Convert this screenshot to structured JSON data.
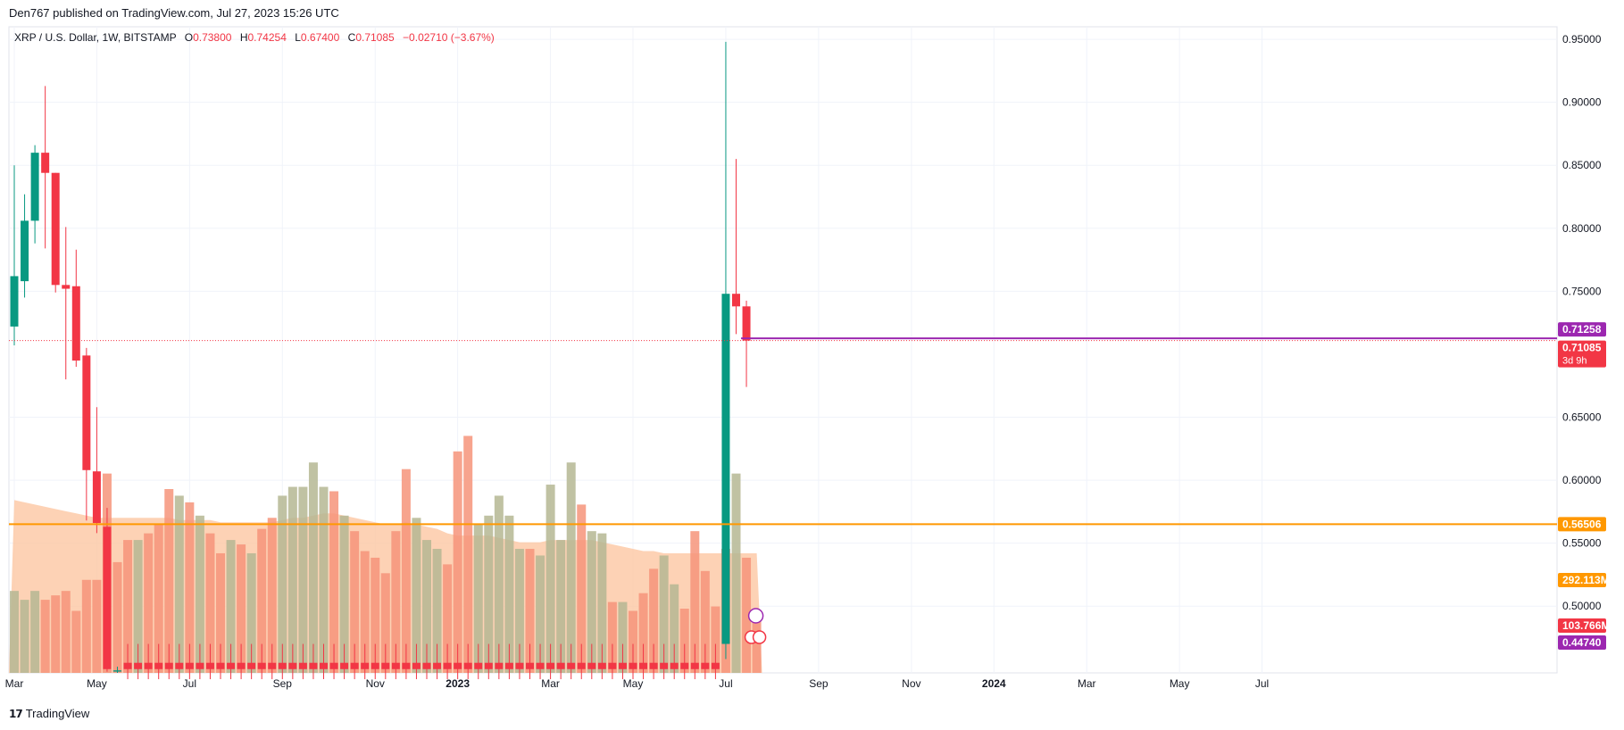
{
  "header": {
    "publisher": "Den767 published on TradingView.com, Jul 27, 2023 15:26 UTC"
  },
  "legend": {
    "symbol": "XRP / U.S. Dollar, 1W, BITSTAMP",
    "o_label": "O",
    "o": "0.73800",
    "h_label": "H",
    "h": "0.74254",
    "l_label": "L",
    "l": "0.67400",
    "c_label": "C",
    "c": "0.71085",
    "change": "−0.02710 (−3.67%)"
  },
  "footer": {
    "brand": "TradingView",
    "logo_icon": "tradingview-logo-icon"
  },
  "colors": {
    "up": "#089981",
    "down": "#f23645",
    "vol_up": "#b5b793",
    "vol_down": "#f6947a",
    "ma_area": "#fcc7a3",
    "support": "#ff9800",
    "resistance": "#9c27b0",
    "axis_text": "#131722",
    "grid": "#f0f3fa"
  },
  "chart_data": {
    "type": "candlestick",
    "symbol": "XRP / U.S. Dollar",
    "interval": "1W",
    "exchange": "BITSTAMP",
    "y_ticks": [
      "0.95000",
      "0.90000",
      "0.85000",
      "0.80000",
      "0.75000",
      "0.65000",
      "0.60000",
      "0.55000",
      "0.50000"
    ],
    "x_ticks": [
      "Mar",
      "May",
      "Jul",
      "Sep",
      "Nov",
      "2023",
      "Mar",
      "May",
      "Jul",
      "Sep",
      "Nov",
      "2024",
      "Mar",
      "May",
      "Jul"
    ],
    "x_tick_weeks": [
      0,
      8,
      17,
      26,
      35,
      43,
      52,
      60,
      69,
      78,
      87,
      95,
      104,
      113,
      121
    ],
    "ylim": [
      0.447,
      0.96
    ],
    "horizontal_lines": [
      {
        "value": 0.56506,
        "label": "0.56506",
        "style": "support"
      },
      {
        "value": 0.71258,
        "label": "0.71258",
        "style": "resistance"
      }
    ],
    "price_labels": [
      {
        "value": 0.71085,
        "label": "0.71085",
        "sub": "3d 9h",
        "style": "last"
      }
    ],
    "volume_labels": [
      {
        "label": "292.113M",
        "style": "support"
      },
      {
        "label": "103.766M",
        "style": "last"
      },
      {
        "label": "0.44740",
        "style": "resistance"
      }
    ],
    "candles": [
      {
        "o": 0.722,
        "h": 0.85,
        "l": 0.707,
        "c": 0.762
      },
      {
        "o": 0.758,
        "h": 0.827,
        "l": 0.745,
        "c": 0.806
      },
      {
        "o": 0.806,
        "h": 0.866,
        "l": 0.788,
        "c": 0.86
      },
      {
        "o": 0.86,
        "h": 0.913,
        "l": 0.784,
        "c": 0.844
      },
      {
        "o": 0.844,
        "h": 0.844,
        "l": 0.749,
        "c": 0.755
      },
      {
        "o": 0.755,
        "h": 0.801,
        "l": 0.68,
        "c": 0.752
      },
      {
        "o": 0.754,
        "h": 0.783,
        "l": 0.69,
        "c": 0.695
      },
      {
        "o": 0.699,
        "h": 0.705,
        "l": 0.568,
        "c": 0.608
      },
      {
        "o": 0.607,
        "h": 0.658,
        "l": 0.558,
        "c": 0.566
      },
      {
        "o": 0.563,
        "h": 0.578,
        "l": 0.448,
        "c": 0.45
      },
      {
        "o": 0.455,
        "h": 0.47,
        "l": 0.442,
        "c": 0.45
      },
      {
        "o": 0.455,
        "h": 0.47,
        "l": 0.442,
        "c": 0.45
      },
      {
        "o": 0.455,
        "h": 0.47,
        "l": 0.442,
        "c": 0.45
      },
      {
        "o": 0.455,
        "h": 0.47,
        "l": 0.442,
        "c": 0.45
      },
      {
        "o": 0.455,
        "h": 0.47,
        "l": 0.442,
        "c": 0.45
      },
      {
        "o": 0.455,
        "h": 0.47,
        "l": 0.442,
        "c": 0.45
      },
      {
        "o": 0.455,
        "h": 0.47,
        "l": 0.442,
        "c": 0.45
      },
      {
        "o": 0.455,
        "h": 0.47,
        "l": 0.442,
        "c": 0.45
      },
      {
        "o": 0.455,
        "h": 0.47,
        "l": 0.442,
        "c": 0.45
      },
      {
        "o": 0.455,
        "h": 0.47,
        "l": 0.442,
        "c": 0.45
      },
      {
        "o": 0.455,
        "h": 0.47,
        "l": 0.442,
        "c": 0.45
      },
      {
        "o": 0.455,
        "h": 0.47,
        "l": 0.442,
        "c": 0.45
      },
      {
        "o": 0.455,
        "h": 0.47,
        "l": 0.442,
        "c": 0.45
      },
      {
        "o": 0.455,
        "h": 0.47,
        "l": 0.442,
        "c": 0.45
      },
      {
        "o": 0.455,
        "h": 0.47,
        "l": 0.442,
        "c": 0.45
      },
      {
        "o": 0.455,
        "h": 0.47,
        "l": 0.442,
        "c": 0.45
      },
      {
        "o": 0.455,
        "h": 0.47,
        "l": 0.442,
        "c": 0.45
      },
      {
        "o": 0.455,
        "h": 0.47,
        "l": 0.442,
        "c": 0.45
      },
      {
        "o": 0.455,
        "h": 0.47,
        "l": 0.442,
        "c": 0.45
      },
      {
        "o": 0.455,
        "h": 0.47,
        "l": 0.442,
        "c": 0.45
      },
      {
        "o": 0.455,
        "h": 0.47,
        "l": 0.442,
        "c": 0.45
      },
      {
        "o": 0.455,
        "h": 0.47,
        "l": 0.442,
        "c": 0.45
      },
      {
        "o": 0.455,
        "h": 0.47,
        "l": 0.442,
        "c": 0.45
      },
      {
        "o": 0.455,
        "h": 0.47,
        "l": 0.442,
        "c": 0.45
      },
      {
        "o": 0.455,
        "h": 0.47,
        "l": 0.442,
        "c": 0.45
      },
      {
        "o": 0.455,
        "h": 0.47,
        "l": 0.442,
        "c": 0.45
      },
      {
        "o": 0.455,
        "h": 0.47,
        "l": 0.442,
        "c": 0.45
      },
      {
        "o": 0.455,
        "h": 0.47,
        "l": 0.442,
        "c": 0.45
      },
      {
        "o": 0.455,
        "h": 0.47,
        "l": 0.442,
        "c": 0.45
      },
      {
        "o": 0.455,
        "h": 0.47,
        "l": 0.442,
        "c": 0.45
      },
      {
        "o": 0.455,
        "h": 0.47,
        "l": 0.442,
        "c": 0.45
      },
      {
        "o": 0.455,
        "h": 0.47,
        "l": 0.442,
        "c": 0.45
      },
      {
        "o": 0.455,
        "h": 0.47,
        "l": 0.442,
        "c": 0.45
      },
      {
        "o": 0.455,
        "h": 0.47,
        "l": 0.442,
        "c": 0.45
      },
      {
        "o": 0.455,
        "h": 0.47,
        "l": 0.442,
        "c": 0.45
      },
      {
        "o": 0.455,
        "h": 0.47,
        "l": 0.442,
        "c": 0.45
      },
      {
        "o": 0.455,
        "h": 0.47,
        "l": 0.442,
        "c": 0.45
      },
      {
        "o": 0.455,
        "h": 0.47,
        "l": 0.442,
        "c": 0.45
      },
      {
        "o": 0.455,
        "h": 0.47,
        "l": 0.442,
        "c": 0.45
      },
      {
        "o": 0.455,
        "h": 0.47,
        "l": 0.442,
        "c": 0.45
      },
      {
        "o": 0.455,
        "h": 0.47,
        "l": 0.442,
        "c": 0.45
      },
      {
        "o": 0.455,
        "h": 0.47,
        "l": 0.442,
        "c": 0.45
      },
      {
        "o": 0.455,
        "h": 0.47,
        "l": 0.442,
        "c": 0.45
      },
      {
        "o": 0.455,
        "h": 0.47,
        "l": 0.442,
        "c": 0.45
      },
      {
        "o": 0.455,
        "h": 0.47,
        "l": 0.442,
        "c": 0.45
      },
      {
        "o": 0.455,
        "h": 0.47,
        "l": 0.442,
        "c": 0.45
      },
      {
        "o": 0.455,
        "h": 0.47,
        "l": 0.442,
        "c": 0.45
      },
      {
        "o": 0.455,
        "h": 0.47,
        "l": 0.442,
        "c": 0.45
      },
      {
        "o": 0.455,
        "h": 0.47,
        "l": 0.442,
        "c": 0.45
      },
      {
        "o": 0.455,
        "h": 0.47,
        "l": 0.442,
        "c": 0.45
      },
      {
        "o": 0.455,
        "h": 0.47,
        "l": 0.442,
        "c": 0.45
      },
      {
        "o": 0.455,
        "h": 0.47,
        "l": 0.442,
        "c": 0.45
      },
      {
        "o": 0.455,
        "h": 0.47,
        "l": 0.442,
        "c": 0.45
      },
      {
        "o": 0.455,
        "h": 0.47,
        "l": 0.442,
        "c": 0.45
      },
      {
        "o": 0.455,
        "h": 0.47,
        "l": 0.442,
        "c": 0.45
      },
      {
        "o": 0.455,
        "h": 0.47,
        "l": 0.442,
        "c": 0.45
      },
      {
        "o": 0.455,
        "h": 0.47,
        "l": 0.442,
        "c": 0.45
      },
      {
        "o": 0.455,
        "h": 0.47,
        "l": 0.442,
        "c": 0.45
      },
      {
        "o": 0.455,
        "h": 0.47,
        "l": 0.442,
        "c": 0.45
      },
      {
        "o": 0.47,
        "h": 0.948,
        "l": 0.458,
        "c": 0.748
      },
      {
        "o": 0.748,
        "h": 0.855,
        "l": 0.716,
        "c": 0.738
      },
      {
        "o": 0.738,
        "h": 0.74254,
        "l": 0.674,
        "c": 0.71085
      }
    ],
    "candles_visible_from": 0,
    "visible_candle_overrides": {
      "10": {
        "o": 0.448,
        "h": 0.452,
        "l": 0.447,
        "c": 0.449
      }
    },
    "volume": [
      {
        "v": 0.37,
        "up": true
      },
      {
        "v": 0.33,
        "up": true
      },
      {
        "v": 0.37,
        "up": true
      },
      {
        "v": 0.33,
        "up": false
      },
      {
        "v": 0.35,
        "up": false
      },
      {
        "v": 0.37,
        "up": false
      },
      {
        "v": 0.28,
        "up": false
      },
      {
        "v": 0.42,
        "up": false
      },
      {
        "v": 0.42,
        "up": false
      },
      {
        "v": 0.9,
        "up": false
      },
      {
        "v": 0.5,
        "up": false
      },
      {
        "v": 0.6,
        "up": false
      },
      {
        "v": 0.6,
        "up": true
      },
      {
        "v": 0.63,
        "up": false
      },
      {
        "v": 0.67,
        "up": false
      },
      {
        "v": 0.83,
        "up": false
      },
      {
        "v": 0.8,
        "up": true
      },
      {
        "v": 0.77,
        "up": false
      },
      {
        "v": 0.71,
        "up": true
      },
      {
        "v": 0.63,
        "up": false
      },
      {
        "v": 0.54,
        "up": false
      },
      {
        "v": 0.6,
        "up": true
      },
      {
        "v": 0.58,
        "up": false
      },
      {
        "v": 0.54,
        "up": true
      },
      {
        "v": 0.65,
        "up": false
      },
      {
        "v": 0.7,
        "up": false
      },
      {
        "v": 0.8,
        "up": true
      },
      {
        "v": 0.84,
        "up": true
      },
      {
        "v": 0.84,
        "up": true
      },
      {
        "v": 0.95,
        "up": true
      },
      {
        "v": 0.84,
        "up": true
      },
      {
        "v": 0.82,
        "up": false
      },
      {
        "v": 0.71,
        "up": true
      },
      {
        "v": 0.64,
        "up": false
      },
      {
        "v": 0.55,
        "up": false
      },
      {
        "v": 0.52,
        "up": false
      },
      {
        "v": 0.45,
        "up": false
      },
      {
        "v": 0.64,
        "up": false
      },
      {
        "v": 0.92,
        "up": false
      },
      {
        "v": 0.7,
        "up": true
      },
      {
        "v": 0.6,
        "up": true
      },
      {
        "v": 0.56,
        "up": true
      },
      {
        "v": 0.49,
        "up": false
      },
      {
        "v": 1.0,
        "up": false
      },
      {
        "v": 1.07,
        "up": false
      },
      {
        "v": 0.67,
        "up": true
      },
      {
        "v": 0.71,
        "up": true
      },
      {
        "v": 0.8,
        "up": true
      },
      {
        "v": 0.71,
        "up": true
      },
      {
        "v": 0.56,
        "up": true
      },
      {
        "v": 0.56,
        "up": false
      },
      {
        "v": 0.53,
        "up": true
      },
      {
        "v": 0.85,
        "up": true
      },
      {
        "v": 0.6,
        "up": true
      },
      {
        "v": 0.95,
        "up": true
      },
      {
        "v": 0.76,
        "up": false
      },
      {
        "v": 0.64,
        "up": true
      },
      {
        "v": 0.63,
        "up": true
      },
      {
        "v": 0.32,
        "up": false
      },
      {
        "v": 0.32,
        "up": true
      },
      {
        "v": 0.28,
        "up": false
      },
      {
        "v": 0.36,
        "up": false
      },
      {
        "v": 0.47,
        "up": false
      },
      {
        "v": 0.53,
        "up": true
      },
      {
        "v": 0.4,
        "up": true
      },
      {
        "v": 0.29,
        "up": false
      },
      {
        "v": 0.64,
        "up": false
      },
      {
        "v": 0.46,
        "up": false
      },
      {
        "v": 0.3,
        "up": false
      },
      {
        "v": 0.56,
        "up": false
      },
      {
        "v": 0.9,
        "up": true
      },
      {
        "v": 0.52,
        "up": false
      },
      {
        "v": 0.28,
        "up": false
      }
    ],
    "volume_ma": [
      0.78,
      0.77,
      0.76,
      0.75,
      0.74,
      0.73,
      0.72,
      0.71,
      0.7,
      0.7,
      0.7,
      0.7,
      0.7,
      0.7,
      0.7,
      0.7,
      0.69,
      0.69,
      0.69,
      0.69,
      0.68,
      0.68,
      0.68,
      0.68,
      0.68,
      0.68,
      0.69,
      0.7,
      0.7,
      0.71,
      0.72,
      0.72,
      0.71,
      0.7,
      0.69,
      0.68,
      0.67,
      0.67,
      0.68,
      0.67,
      0.66,
      0.65,
      0.63,
      0.62,
      0.62,
      0.62,
      0.62,
      0.61,
      0.6,
      0.59,
      0.59,
      0.59,
      0.6,
      0.6,
      0.6,
      0.6,
      0.6,
      0.59,
      0.58,
      0.57,
      0.56,
      0.55,
      0.55,
      0.54,
      0.54,
      0.54,
      0.54,
      0.54,
      0.54,
      0.54,
      0.54,
      0.54,
      0.54
    ]
  }
}
